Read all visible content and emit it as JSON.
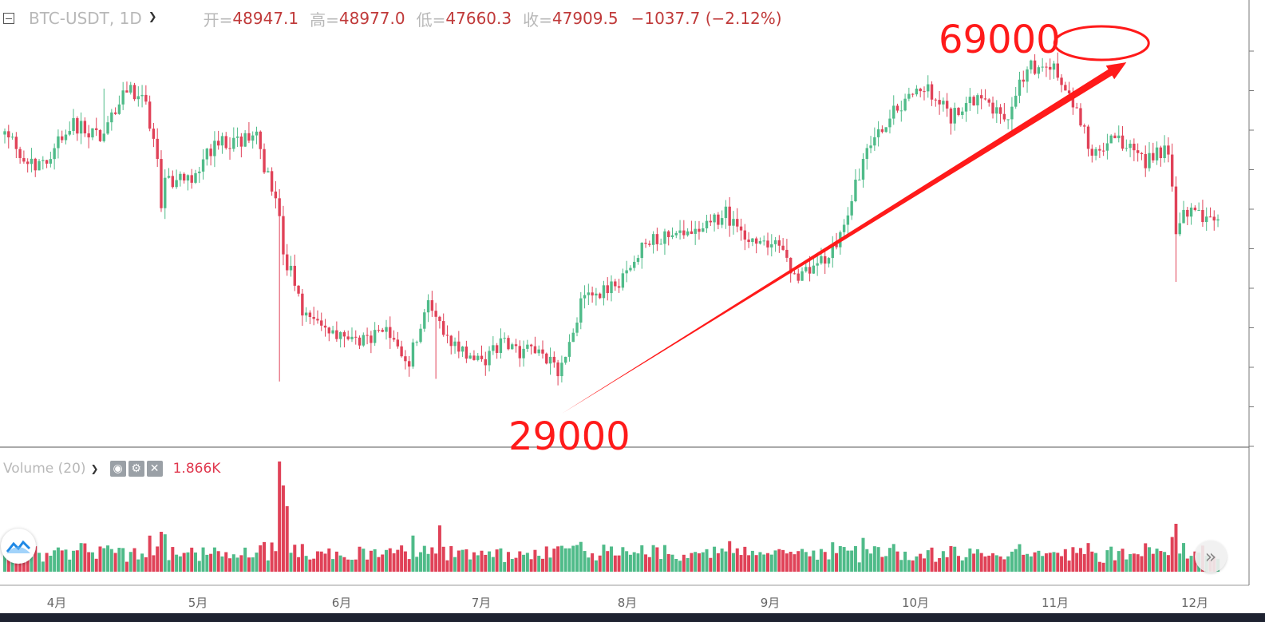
{
  "header": {
    "symbol": "BTC-USDT, 1D",
    "open_label": "开=",
    "open": "48947.1",
    "high_label": "高=",
    "high": "48977.0",
    "low_label": "低=",
    "low": "47660.3",
    "close_label": "收=",
    "close": "47909.5",
    "change": "−1037.7 (−2.12%)"
  },
  "volume_header": {
    "title": "Volume (20)",
    "value": "1.866K"
  },
  "annotations": {
    "high_label": "69000",
    "low_label": "29000"
  },
  "colors": {
    "up": "#4fbb89",
    "down": "#e04258",
    "annotation": "#ff1a1a",
    "grid": "#888888"
  },
  "icons": {
    "logo": "logo-icon",
    "scroll": "double-chevron-right-icon"
  },
  "chart_data": {
    "type": "candlestick",
    "x_axis_labels": [
      "4月",
      "5月",
      "6月",
      "7月",
      "8月",
      "9月",
      "10月",
      "11月",
      "12月"
    ],
    "y_range": [
      27000,
      72000
    ],
    "annotations": [
      {
        "text": "69000",
        "value": 69000
      },
      {
        "text": "29000",
        "value": 29000
      }
    ],
    "anchors": [
      {
        "d": 0,
        "v": 59000
      },
      {
        "d": 8,
        "v": 55000
      },
      {
        "d": 18,
        "v": 60000
      },
      {
        "d": 26,
        "v": 59000
      },
      {
        "d": 32,
        "v": 64500
      },
      {
        "d": 37,
        "v": 62500
      },
      {
        "d": 41,
        "v": 54000
      },
      {
        "d": 48,
        "v": 53500
      },
      {
        "d": 55,
        "v": 58000
      },
      {
        "d": 66,
        "v": 58500
      },
      {
        "d": 72,
        "v": 49500
      },
      {
        "d": 78,
        "v": 38500
      },
      {
        "d": 85,
        "v": 36500
      },
      {
        "d": 93,
        "v": 35500
      },
      {
        "d": 101,
        "v": 36000
      },
      {
        "d": 106,
        "v": 33000
      },
      {
        "d": 111,
        "v": 39800
      },
      {
        "d": 117,
        "v": 35000
      },
      {
        "d": 125,
        "v": 32500
      },
      {
        "d": 130,
        "v": 35000
      },
      {
        "d": 135,
        "v": 33800
      },
      {
        "d": 140,
        "v": 34200
      },
      {
        "d": 145,
        "v": 31500
      },
      {
        "d": 152,
        "v": 40500
      },
      {
        "d": 160,
        "v": 41500
      },
      {
        "d": 168,
        "v": 46500
      },
      {
        "d": 176,
        "v": 47200
      },
      {
        "d": 185,
        "v": 48700
      },
      {
        "d": 189,
        "v": 49800
      },
      {
        "d": 195,
        "v": 46500
      },
      {
        "d": 202,
        "v": 46800
      },
      {
        "d": 207,
        "v": 42800
      },
      {
        "d": 213,
        "v": 43500
      },
      {
        "d": 219,
        "v": 47000
      },
      {
        "d": 225,
        "v": 56000
      },
      {
        "d": 233,
        "v": 61500
      },
      {
        "d": 241,
        "v": 64500
      },
      {
        "d": 248,
        "v": 61000
      },
      {
        "d": 255,
        "v": 63500
      },
      {
        "d": 262,
        "v": 60500
      },
      {
        "d": 268,
        "v": 66500
      },
      {
        "d": 273,
        "v": 67500
      },
      {
        "d": 279,
        "v": 64000
      },
      {
        "d": 285,
        "v": 57000
      },
      {
        "d": 292,
        "v": 58500
      },
      {
        "d": 299,
        "v": 56000
      },
      {
        "d": 305,
        "v": 57500
      },
      {
        "d": 307,
        "v": 49500
      },
      {
        "d": 313,
        "v": 50000
      },
      {
        "d": 318,
        "v": 48500
      }
    ],
    "candle_count": 319
  }
}
